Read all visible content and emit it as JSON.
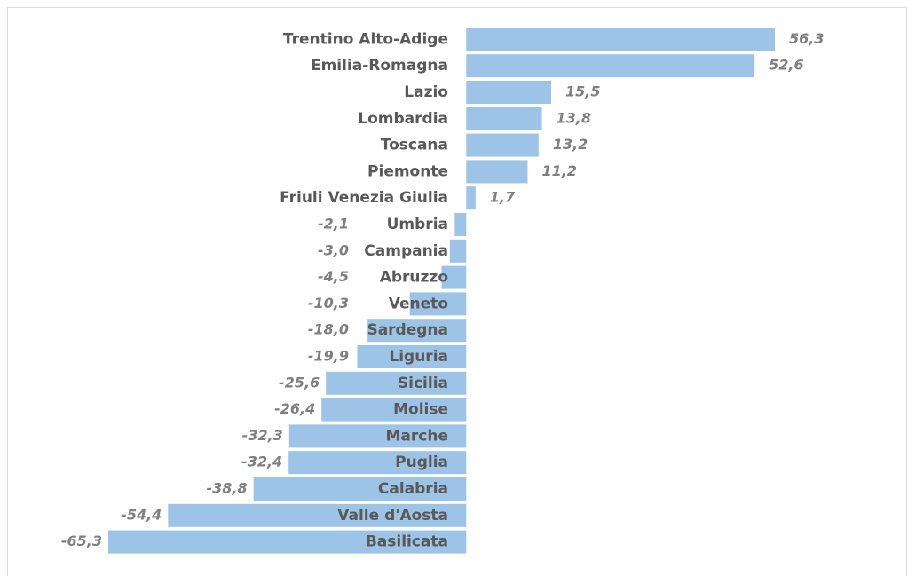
{
  "chart_data": {
    "type": "bar",
    "orientation": "horizontal",
    "color": "#9dc3e6",
    "categories": [
      "Trentino Alto-Adige",
      "Emilia-Romagna",
      "Lazio",
      "Lombardia",
      "Toscana",
      "Piemonte",
      "Friuli Venezia Giulia",
      "Umbria",
      "Campania",
      "Abruzzo",
      "Veneto",
      "Sardegna",
      "Liguria",
      "Sicilia",
      "Molise",
      "Marche",
      "Puglia",
      "Calabria",
      "Valle d'Aosta",
      "Basilicata"
    ],
    "values": [
      56.3,
      52.6,
      15.5,
      13.8,
      13.2,
      11.2,
      1.7,
      -2.1,
      -3.0,
      -4.5,
      -10.3,
      -18.0,
      -19.9,
      -25.6,
      -26.4,
      -32.3,
      -32.4,
      -38.8,
      -54.4,
      -65.3
    ],
    "value_labels": [
      "56,3",
      "52,6",
      "15,5",
      "13,8",
      "13,2",
      "11,2",
      "1,7",
      "-2,1",
      "-3,0",
      "-4,5",
      "-10,3",
      "-18,0",
      "-19,9",
      "-25,6",
      "-26,4",
      "-32,3",
      "-32,4",
      "-38,8",
      "-54,4",
      "-65,3"
    ]
  }
}
